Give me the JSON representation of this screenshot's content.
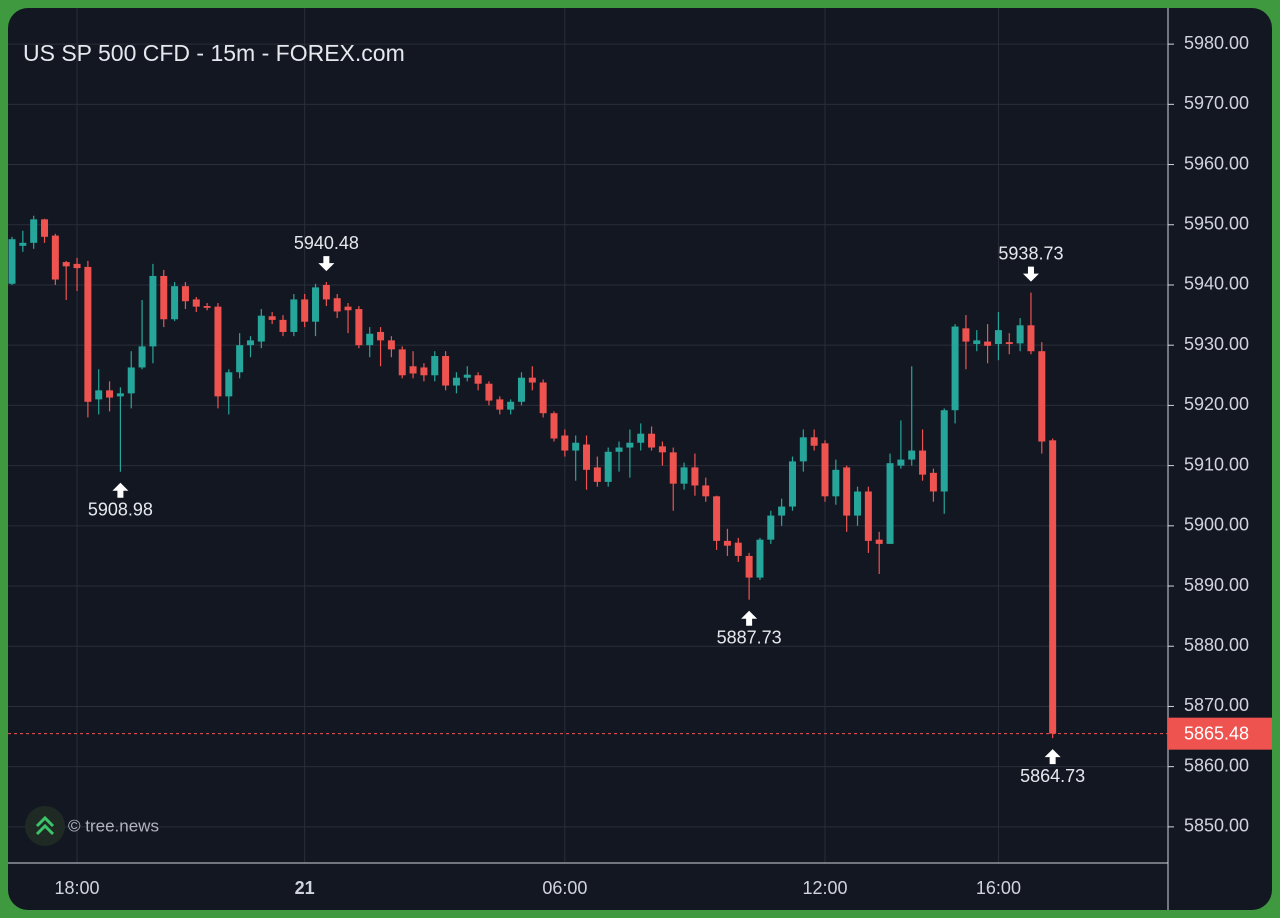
{
  "chart_data": {
    "type": "candlestick",
    "title": "US SP 500 CFD - 15m - FOREX.com",
    "watermark": "© tree.news",
    "categories": [
      null,
      null,
      null,
      null,
      null,
      null,
      "18:00",
      null,
      null,
      null,
      null,
      null,
      null,
      null,
      null,
      null,
      null,
      null,
      null,
      null,
      null,
      null,
      null,
      null,
      null,
      null,
      null,
      "21",
      null,
      null,
      null,
      null,
      null,
      null,
      null,
      null,
      null,
      null,
      null,
      null,
      null,
      null,
      null,
      null,
      null,
      null,
      null,
      null,
      null,
      null,
      null,
      "06:00",
      null,
      null,
      null,
      null,
      null,
      null,
      null,
      null,
      null,
      null,
      null,
      null,
      null,
      null,
      null,
      null,
      null,
      null,
      null,
      null,
      null,
      null,
      null,
      "12:00",
      null,
      null,
      null,
      null,
      null,
      null,
      null,
      null,
      null,
      null,
      null,
      null,
      null,
      null,
      null,
      "16:00",
      null,
      null,
      null,
      null,
      null
    ],
    "open": [
      5940.2,
      5946.5,
      5947,
      5950.9,
      5948.2,
      5943.8,
      5943.5,
      5943,
      5921,
      5922.5,
      5921.5,
      5922,
      5926.3,
      5929.8,
      5941.5,
      5934.3,
      5939.8,
      5937.6,
      5936.5,
      5936.4,
      5921.5,
      5925.5,
      5930,
      5930.6,
      5934.8,
      5934.2,
      5932.2,
      5937.6,
      5933.9,
      5940,
      5937.8,
      5936.4,
      5936,
      5930,
      5932.2,
      5930.8,
      5929.3,
      5926.5,
      5926.3,
      5925,
      5928.2,
      5923.3,
      5924.6,
      5925,
      5923.6,
      5921,
      5919.3,
      5920.6,
      5924.6,
      5923.8,
      5918.7,
      5915,
      5912.5,
      5913.5,
      5909.7,
      5907.3,
      5912.3,
      5913,
      5913.8,
      5915.3,
      5913.2,
      5912.2,
      5907,
      5909.7,
      5906.7,
      5904.9,
      5897.5,
      5897.2,
      5895,
      5891.4,
      5897.7,
      5901.7,
      5903.2,
      5910.7,
      5914.7,
      5913.7,
      5904.9,
      5909.7,
      5901.7,
      5905.7,
      5897.7,
      5897,
      5910,
      5911,
      5912.5,
      5908.8,
      5905.7,
      5919.2,
      5932.8,
      5930.2,
      5930.6,
      5930.2,
      5930.5,
      5930.3,
      5933.3,
      5929,
      5914.2
    ],
    "high": [
      5948,
      5949,
      5951.5,
      5951,
      5948.5,
      5944,
      5944.5,
      5944,
      5926,
      5924,
      5923,
      5929,
      5937.5,
      5943.5,
      5942.5,
      5940.5,
      5940.5,
      5938,
      5937,
      5937,
      5926,
      5932,
      5931.5,
      5936,
      5935.5,
      5935,
      5938.5,
      5938.5,
      5940.2,
      5940.48,
      5938.5,
      5937,
      5936.5,
      5933,
      5933,
      5931.5,
      5929.8,
      5929,
      5927,
      5929,
      5929,
      5925.5,
      5926.5,
      5925.5,
      5924,
      5921.5,
      5921,
      5925.5,
      5926.5,
      5924.3,
      5919,
      5916,
      5915,
      5915,
      5911.5,
      5913,
      5914,
      5916,
      5917,
      5916.5,
      5914,
      5913,
      5910.5,
      5912,
      5908,
      5905,
      5899.5,
      5898,
      5895.5,
      5898,
      5902.5,
      5904.5,
      5911.5,
      5916,
      5916,
      5914.2,
      5911,
      5910,
      5906.5,
      5906.5,
      5899,
      5912,
      5917.5,
      5926.5,
      5916,
      5909.5,
      5919.5,
      5933.5,
      5935,
      5932.5,
      5933.5,
      5935.5,
      5932,
      5934.5,
      5938.73,
      5930.5,
      5914.5
    ],
    "low": [
      5940,
      5945.5,
      5946,
      5947,
      5940,
      5937.5,
      5939,
      5918,
      5918.5,
      5919,
      5908.98,
      5919.5,
      5926,
      5927,
      5933,
      5934,
      5936,
      5935.5,
      5935.8,
      5919.5,
      5918.5,
      5924.5,
      5928,
      5929.5,
      5933.5,
      5931.5,
      5931.5,
      5933,
      5931.5,
      5936.5,
      5934.5,
      5932,
      5929.5,
      5928,
      5926.5,
      5928,
      5924.5,
      5924.5,
      5924,
      5924,
      5922.5,
      5922,
      5924,
      5922.5,
      5920,
      5918.5,
      5918.5,
      5920,
      5922.5,
      5918,
      5914,
      5911.5,
      5907.5,
      5906,
      5906.5,
      5906.5,
      5909,
      5908,
      5912.5,
      5912.5,
      5910,
      5902.5,
      5906,
      5905,
      5904,
      5896,
      5895,
      5894,
      5887.73,
      5891,
      5897,
      5900,
      5902.5,
      5909,
      5912.5,
      5904,
      5903.5,
      5899,
      5900,
      5895.5,
      5892,
      5897,
      5909.5,
      5910,
      5907.5,
      5904,
      5902,
      5917,
      5926,
      5929,
      5927,
      5927.5,
      5928.5,
      5929,
      5928.5,
      5912,
      5864.73
    ],
    "close": [
      5947.6,
      5947,
      5950.9,
      5948,
      5940.9,
      5943.1,
      5942.8,
      5920.6,
      5922.5,
      5921.3,
      5922,
      5926.3,
      5929.8,
      5941.5,
      5934.3,
      5939.8,
      5937.3,
      5936.4,
      5936.2,
      5921.5,
      5925.5,
      5930,
      5930.8,
      5934.9,
      5934.2,
      5932.2,
      5937.6,
      5933.9,
      5939.6,
      5937.6,
      5935.6,
      5935.8,
      5930,
      5931.9,
      5930.8,
      5929.3,
      5925,
      5925.3,
      5925,
      5928.2,
      5923.3,
      5924.6,
      5925.1,
      5923.6,
      5920.8,
      5919.3,
      5920.6,
      5924.6,
      5923.8,
      5918.7,
      5914.5,
      5912.5,
      5913.8,
      5909.3,
      5907.3,
      5912.3,
      5913,
      5913.8,
      5915.3,
      5913,
      5912.2,
      5907,
      5909.7,
      5906.7,
      5904.9,
      5897.5,
      5896.7,
      5895,
      5891.4,
      5897.7,
      5901.7,
      5903.2,
      5910.7,
      5914.7,
      5913.3,
      5904.9,
      5909.3,
      5901.7,
      5905.7,
      5897.5,
      5897,
      5910.4,
      5911,
      5912.5,
      5908.5,
      5905.7,
      5919.2,
      5933.1,
      5930.6,
      5930.8,
      5929.9,
      5932.5,
      5930.2,
      5933.3,
      5929,
      5914,
      5865.48
    ],
    "up_color": "#26a69a",
    "down_color": "#ef5350",
    "marked_highs": [
      29,
      94
    ],
    "marked_lows": [
      10,
      68,
      96
    ],
    "ylim": [
      5844,
      5986
    ],
    "yticks": [
      {
        "value": 5850,
        "label": "5850.00"
      },
      {
        "value": 5860,
        "label": "5860.00"
      },
      {
        "value": 5870,
        "label": "5870.00"
      },
      {
        "value": 5880,
        "label": "5880.00"
      },
      {
        "value": 5890,
        "label": "5890.00"
      },
      {
        "value": 5900,
        "label": "5900.00"
      },
      {
        "value": 5910,
        "label": "5910.00"
      },
      {
        "value": 5920,
        "label": "5920.00"
      },
      {
        "value": 5930,
        "label": "5930.00"
      },
      {
        "value": 5940,
        "label": "5940.00"
      },
      {
        "value": 5950,
        "label": "5950.00"
      },
      {
        "value": 5960,
        "label": "5960.00"
      },
      {
        "value": 5970,
        "label": "5970.00"
      },
      {
        "value": 5980,
        "label": "5980.00"
      }
    ],
    "grid": true
  }
}
